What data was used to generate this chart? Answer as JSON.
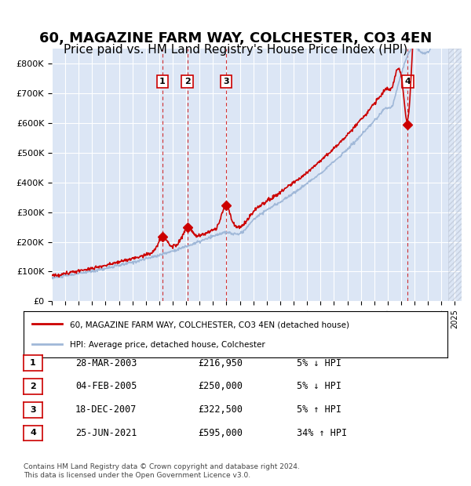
{
  "title": "60, MAGAZINE FARM WAY, COLCHESTER, CO3 4EN",
  "subtitle": "Price paid vs. HM Land Registry's House Price Index (HPI)",
  "title_fontsize": 13,
  "subtitle_fontsize": 11,
  "background_color": "#dce6f5",
  "plot_bg_color": "#dce6f5",
  "grid_color": "#ffffff",
  "hpi_color": "#a0b8d8",
  "price_color": "#cc0000",
  "sale_marker_color": "#cc0000",
  "vline_color": "#cc0000",
  "xlim_start": 1995.0,
  "xlim_end": 2025.5,
  "ylim_min": 0,
  "ylim_max": 850000,
  "yticks": [
    0,
    100000,
    200000,
    300000,
    400000,
    500000,
    600000,
    700000,
    800000
  ],
  "ytick_labels": [
    "£0",
    "£100K",
    "£200K",
    "£300K",
    "£400K",
    "£500K",
    "£600K",
    "£700K",
    "£800K"
  ],
  "sales": [
    {
      "num": 1,
      "year": 2003.24,
      "price": 216950,
      "date": "28-MAR-2003",
      "pct": "5%",
      "dir": "↓",
      "label": "£216,950"
    },
    {
      "num": 2,
      "year": 2005.09,
      "price": 250000,
      "date": "04-FEB-2005",
      "pct": "5%",
      "dir": "↓",
      "label": "£250,000"
    },
    {
      "num": 3,
      "year": 2007.96,
      "price": 322500,
      "date": "18-DEC-2007",
      "pct": "5%",
      "dir": "↑",
      "label": "£322,500"
    },
    {
      "num": 4,
      "year": 2021.49,
      "price": 595000,
      "date": "25-JUN-2021",
      "pct": "34%",
      "dir": "↑",
      "label": "£595,000"
    }
  ],
  "legend_entries": [
    "60, MAGAZINE FARM WAY, COLCHESTER, CO3 4EN (detached house)",
    "HPI: Average price, detached house, Colchester"
  ],
  "footer": "Contains HM Land Registry data © Crown copyright and database right 2024.\nThis data is licensed under the Open Government Licence v3.0.",
  "table_rows": [
    {
      "num": 1,
      "date": "28-MAR-2003",
      "price": "£216,950",
      "pct": "5% ↓ HPI"
    },
    {
      "num": 2,
      "date": "04-FEB-2005",
      "price": "£250,000",
      "pct": "5% ↓ HPI"
    },
    {
      "num": 3,
      "date": "18-DEC-2007",
      "price": "£322,500",
      "pct": "5% ↑ HPI"
    },
    {
      "num": 4,
      "date": "25-JUN-2021",
      "price": "£595,000",
      "pct": "34% ↑ HPI"
    }
  ]
}
